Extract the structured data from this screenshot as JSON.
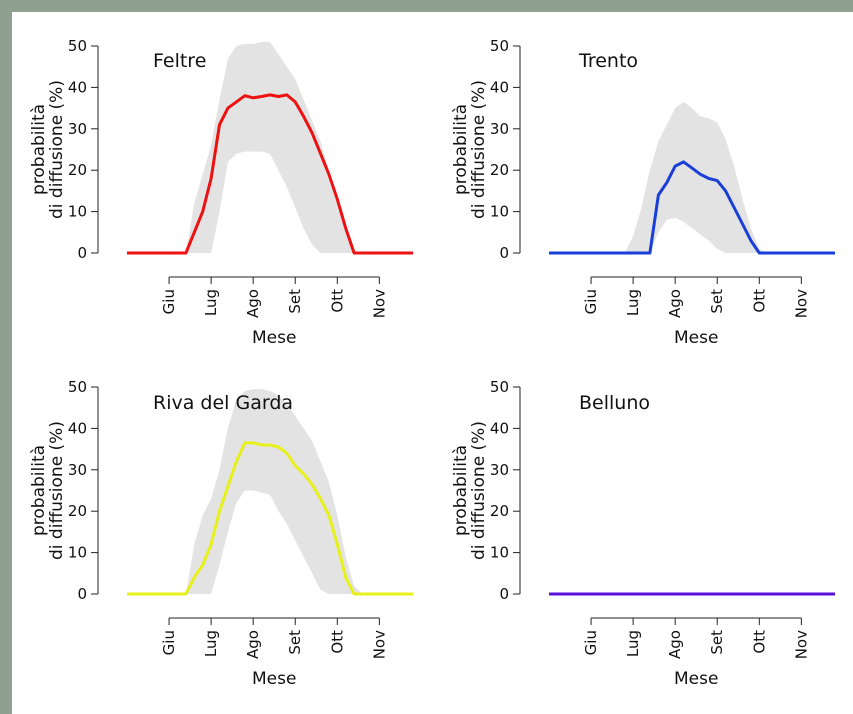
{
  "chart_data": [
    {
      "type": "area",
      "title": "Feltre",
      "xlabel": "Mese",
      "ylabel": [
        "probabilità",
        "di diffusione (%)"
      ],
      "ylim": [
        0,
        50
      ],
      "yticks": [
        0,
        10,
        20,
        30,
        40,
        50
      ],
      "xticks": [
        "Giu",
        "Lug",
        "Ago",
        "Set",
        "Ott",
        "Nov"
      ],
      "line_color": "#ee1111",
      "band_color": "#e3e3e3",
      "x": [
        0,
        0.2,
        0.4,
        0.6,
        0.8,
        1.0,
        1.2,
        1.4,
        1.6,
        1.8,
        2.0,
        2.2,
        2.4,
        2.6,
        2.8,
        3.0,
        3.2,
        3.4,
        3.6,
        3.8,
        4.0,
        4.2,
        4.4,
        4.6,
        4.8,
        5.0,
        5.2,
        5.4,
        5.6,
        5.8,
        6.0,
        6.2,
        6.4,
        6.6,
        6.8
      ],
      "series": [
        {
          "role": "median",
          "values": [
            0,
            0,
            0,
            0,
            0,
            0,
            0,
            0,
            5,
            10,
            18,
            31,
            35,
            36.5,
            38,
            37.5,
            37.8,
            38.2,
            37.8,
            38.2,
            36.5,
            33,
            29,
            24,
            19,
            13,
            6,
            0,
            0,
            0,
            0,
            0,
            0,
            0,
            0
          ]
        },
        {
          "role": "lower",
          "values": [
            0,
            0,
            0,
            0,
            0,
            0,
            0,
            0,
            0,
            0,
            0,
            10,
            22,
            24,
            24.5,
            24.5,
            24.5,
            24,
            20,
            16,
            11,
            6,
            2,
            0,
            0,
            0,
            0,
            0,
            0,
            0,
            0,
            0,
            0,
            0,
            0
          ]
        },
        {
          "role": "upper",
          "values": [
            0,
            0,
            0,
            0,
            0,
            0,
            0,
            0,
            12,
            19,
            26,
            37,
            47,
            50,
            50.5,
            50.5,
            51,
            51,
            48,
            45,
            42,
            37,
            32,
            27,
            20,
            13,
            6,
            0,
            0,
            0,
            0,
            0,
            0,
            0,
            0
          ]
        }
      ]
    },
    {
      "type": "area",
      "title": "Trento",
      "xlabel": "Mese",
      "ylabel": [
        "probabilità",
        "di diffusione (%)"
      ],
      "ylim": [
        0,
        50
      ],
      "yticks": [
        0,
        10,
        20,
        30,
        40,
        50
      ],
      "xticks": [
        "Giu",
        "Lug",
        "Ago",
        "Set",
        "Ott",
        "Nov"
      ],
      "line_color": "#1a3fd8",
      "band_color": "#e3e3e3",
      "x": [
        0,
        0.2,
        0.4,
        0.6,
        0.8,
        1.0,
        1.2,
        1.4,
        1.6,
        1.8,
        2.0,
        2.2,
        2.4,
        2.6,
        2.8,
        3.0,
        3.2,
        3.4,
        3.6,
        3.8,
        4.0,
        4.2,
        4.4,
        4.6,
        4.8,
        5.0,
        5.2,
        5.4,
        5.6,
        5.8,
        6.0,
        6.2,
        6.4,
        6.6,
        6.8
      ],
      "series": [
        {
          "role": "median",
          "values": [
            0,
            0,
            0,
            0,
            0,
            0,
            0,
            0,
            0,
            0,
            0,
            0,
            0,
            14,
            17,
            21,
            22,
            20.5,
            19,
            18,
            17.5,
            15,
            11,
            7,
            3,
            0,
            0,
            0,
            0,
            0,
            0,
            0,
            0,
            0,
            0
          ]
        },
        {
          "role": "lower",
          "values": [
            0,
            0,
            0,
            0,
            0,
            0,
            0,
            0,
            0,
            0,
            0,
            0,
            0,
            5,
            8,
            8.5,
            7.5,
            6,
            4.5,
            3,
            1,
            0,
            0,
            0,
            0,
            0,
            0,
            0,
            0,
            0,
            0,
            0,
            0,
            0,
            0
          ]
        },
        {
          "role": "upper",
          "values": [
            0,
            0,
            0,
            0,
            0,
            0,
            0,
            0,
            0,
            0,
            4,
            11,
            20,
            27,
            31,
            35,
            36.5,
            35,
            33,
            32.5,
            31.5,
            27.5,
            21,
            13,
            6,
            1,
            0,
            0,
            0,
            0,
            0,
            0,
            0,
            0,
            0
          ]
        }
      ]
    },
    {
      "type": "area",
      "title": "Riva del Garda",
      "xlabel": "Mese",
      "ylabel": [
        "probabilità",
        "di diffusione (%)"
      ],
      "ylim": [
        0,
        50
      ],
      "yticks": [
        0,
        10,
        20,
        30,
        40,
        50
      ],
      "xticks": [
        "Giu",
        "Lug",
        "Ago",
        "Set",
        "Ott",
        "Nov"
      ],
      "line_color": "#e8f01a",
      "band_color": "#e3e3e3",
      "x": [
        0,
        0.2,
        0.4,
        0.6,
        0.8,
        1.0,
        1.2,
        1.4,
        1.6,
        1.8,
        2.0,
        2.2,
        2.4,
        2.6,
        2.8,
        3.0,
        3.2,
        3.4,
        3.6,
        3.8,
        4.0,
        4.2,
        4.4,
        4.6,
        4.8,
        5.0,
        5.2,
        5.4,
        5.6,
        5.8,
        6.0,
        6.2,
        6.4,
        6.6,
        6.8
      ],
      "series": [
        {
          "role": "median",
          "values": [
            0,
            0,
            0,
            0,
            0,
            0,
            0,
            0,
            4,
            7,
            12,
            20,
            26,
            32,
            36.5,
            36.5,
            36,
            36,
            35.5,
            34,
            31,
            29,
            26.5,
            23,
            19,
            12,
            4,
            0,
            0,
            0,
            0,
            0,
            0,
            0,
            0
          ]
        },
        {
          "role": "lower",
          "values": [
            0,
            0,
            0,
            0,
            0,
            0,
            0,
            0,
            0,
            0,
            0,
            7,
            15,
            22,
            25,
            25,
            24.5,
            24,
            20,
            17,
            13,
            9,
            5,
            1,
            0,
            0,
            0,
            0,
            0,
            0,
            0,
            0,
            0,
            0,
            0
          ]
        },
        {
          "role": "upper",
          "values": [
            0,
            0,
            0,
            0,
            0,
            0,
            0,
            0,
            12,
            19,
            23,
            30,
            40,
            47,
            49,
            49.5,
            49.5,
            49,
            48,
            46,
            43,
            40,
            37,
            32,
            27,
            19,
            9,
            2,
            0,
            0,
            0,
            0,
            0,
            0,
            0
          ]
        }
      ]
    },
    {
      "type": "area",
      "title": "Belluno",
      "xlabel": "Mese",
      "ylabel": [
        "probabilità",
        "di diffusione (%)"
      ],
      "ylim": [
        0,
        50
      ],
      "yticks": [
        0,
        10,
        20,
        30,
        40,
        50
      ],
      "xticks": [
        "Giu",
        "Lug",
        "Ago",
        "Set",
        "Ott",
        "Nov"
      ],
      "line_color": "#5a10d8",
      "band_color": "#e3e3e3",
      "x": [
        0,
        6.8
      ],
      "series": [
        {
          "role": "median",
          "values": [
            0,
            0
          ]
        }
      ]
    }
  ]
}
